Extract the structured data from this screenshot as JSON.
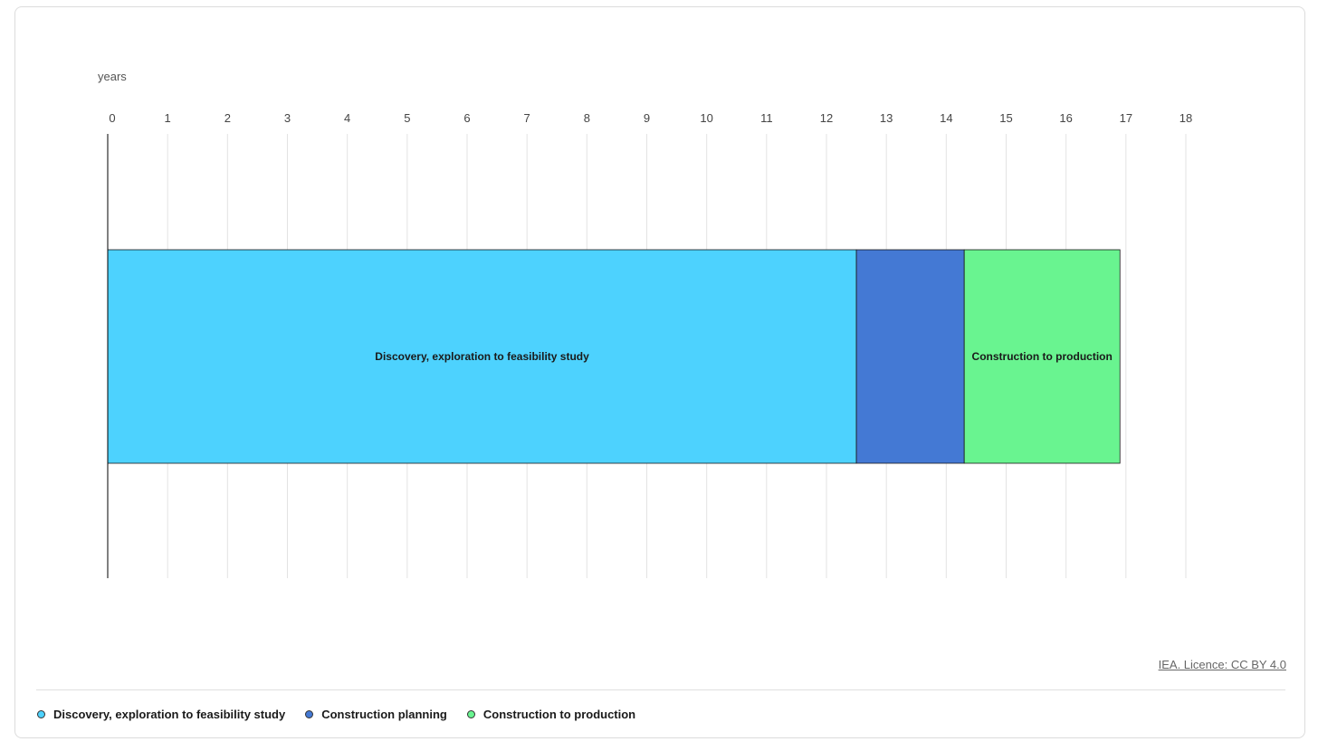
{
  "source": "IEA. Licence: CC BY 4.0",
  "colors": {
    "discovery": "#4dd2fe",
    "planning": "#4479d4",
    "production": "#69f490",
    "grid": "#e3e3e3",
    "axis": "#000000"
  },
  "chart_data": {
    "type": "bar",
    "orientation": "horizontal",
    "stacked": true,
    "unit_label": "years",
    "xlim": [
      0,
      18
    ],
    "xticks": [
      0,
      1,
      2,
      3,
      4,
      5,
      6,
      7,
      8,
      9,
      10,
      11,
      12,
      13,
      14,
      15,
      16,
      17,
      18
    ],
    "grid": true,
    "legend_position": "bottom-left",
    "series": [
      {
        "name": "Discovery, exploration to feasibility study",
        "value": 12.5,
        "bar_label": "Discovery, exploration to feasibility study",
        "color_key": "discovery"
      },
      {
        "name": "Construction planning",
        "value": 1.8,
        "bar_label": "",
        "color_key": "planning"
      },
      {
        "name": "Construction to production",
        "value": 2.6,
        "bar_label": "Construction to production",
        "color_key": "production"
      }
    ]
  }
}
